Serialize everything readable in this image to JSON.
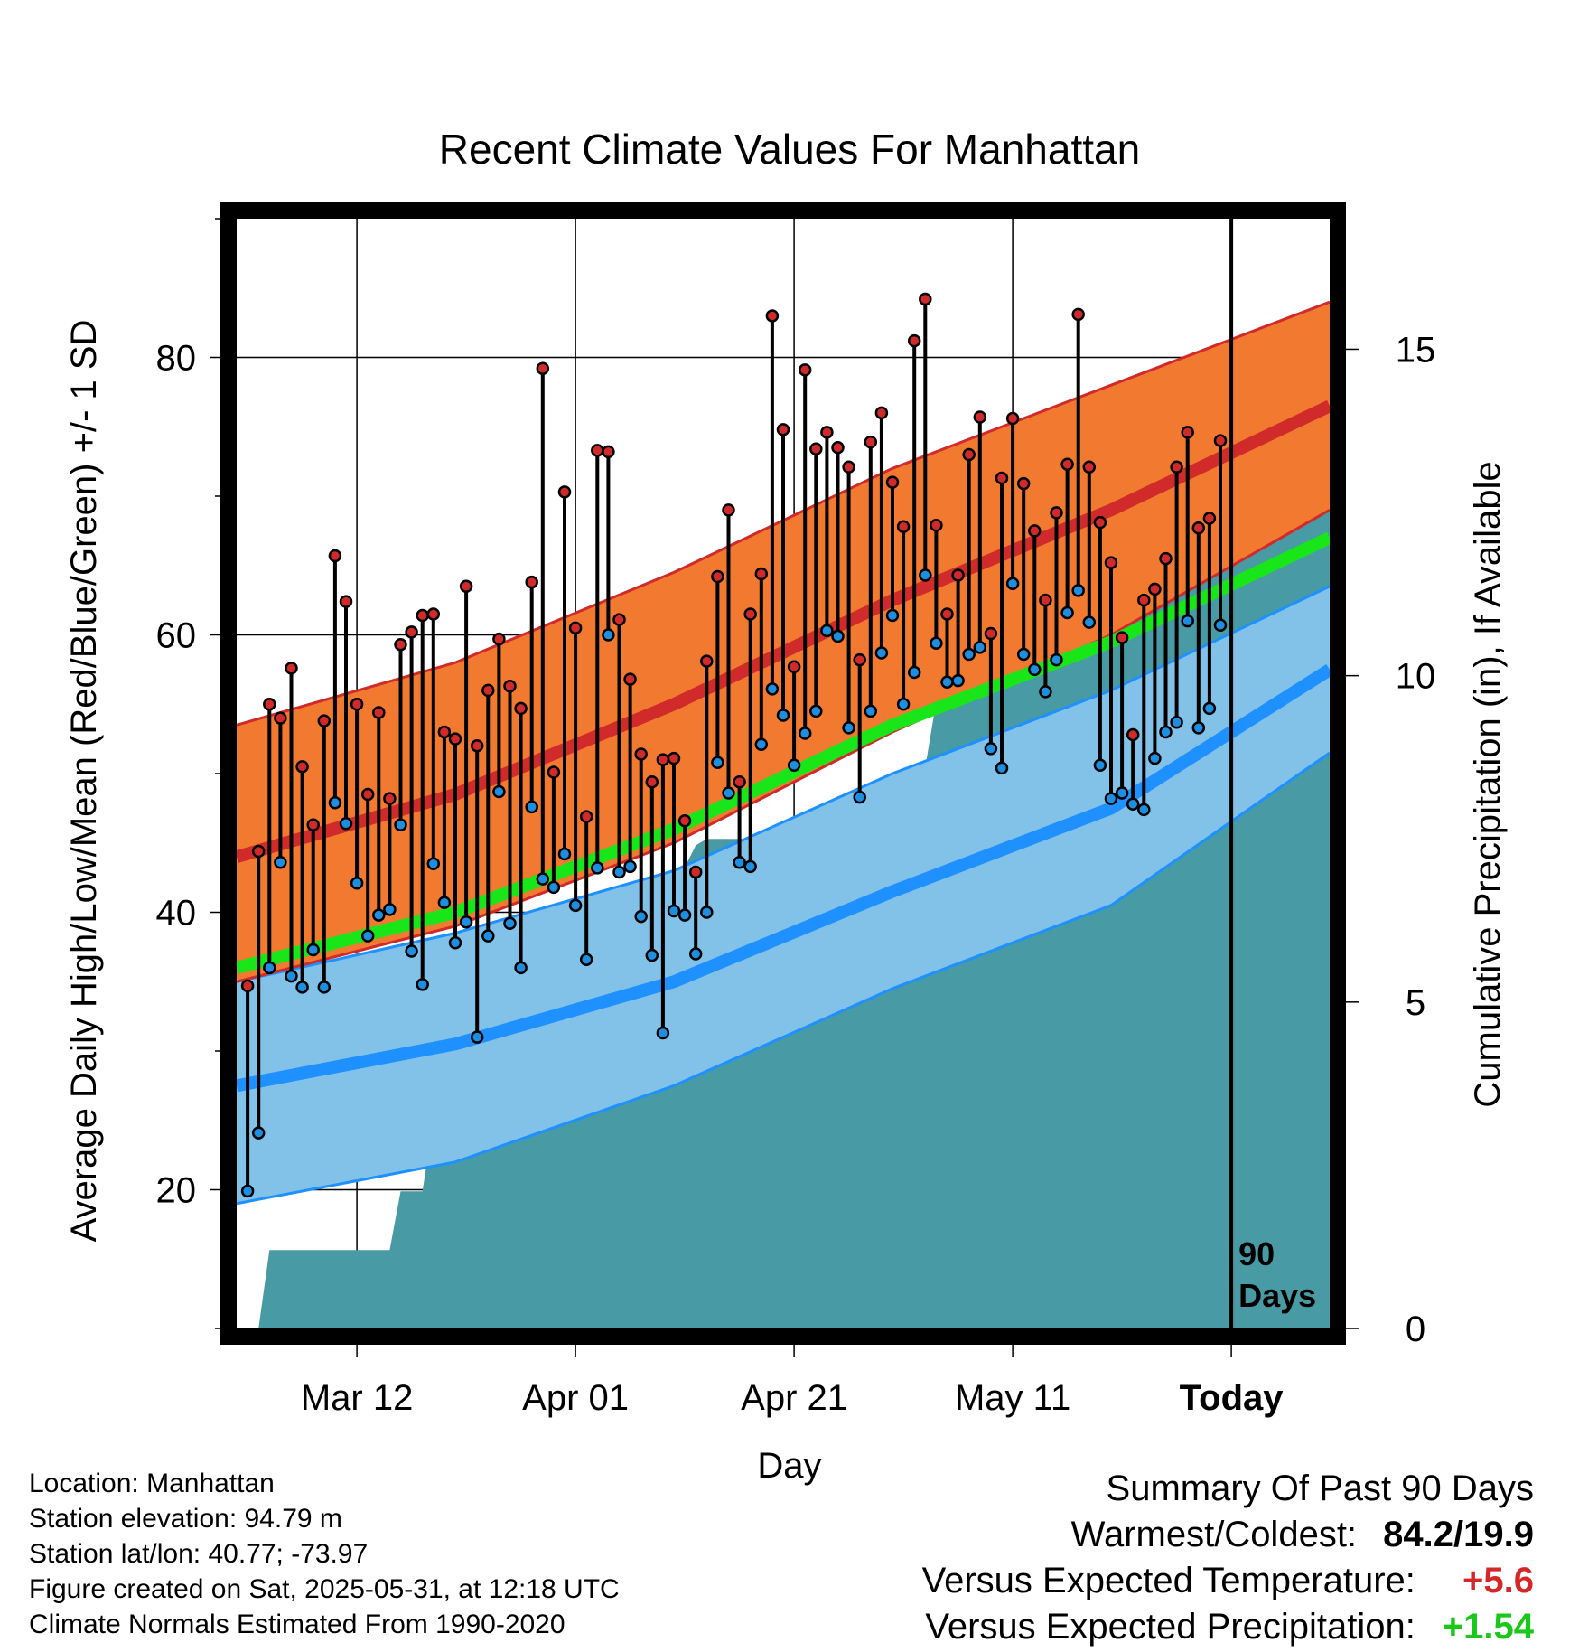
{
  "chart_data": {
    "type": "line",
    "title": "Recent Climate Values For Manhattan",
    "xlabel": "Day",
    "ylabel_left": "Average Daily High/Low/Mean (Red/Blue/Green) +/- 1 SD",
    "ylabel_right": "Cumulative Precipitation (in), If Available",
    "x_tick_labels": [
      "Mar 12",
      "Apr 01",
      "Apr 21",
      "May 11",
      "Today"
    ],
    "x_tick_days": [
      11,
      31,
      51,
      71,
      91
    ],
    "xlim": [
      0,
      100
    ],
    "ylim_left": [
      10,
      90
    ],
    "y_ticks_left": [
      20,
      40,
      60,
      80
    ],
    "ylim_right": [
      0,
      17
    ],
    "y_ticks_right": [
      0,
      5,
      10,
      15
    ],
    "grid": true,
    "today_marker": {
      "day": 91,
      "label_line1": "90",
      "label_line2": "Days"
    },
    "colors": {
      "high_band": "#f27a30",
      "high_line": "#d12a2a",
      "low_band": "#82c1e8",
      "low_line": "#1e90ff",
      "mean_line": "#19e619",
      "precip": "#489aa4",
      "high_marker": "#d12a2a",
      "low_marker": "#1e8fe0"
    },
    "normals": {
      "days": [
        0,
        20,
        40,
        60,
        80,
        100
      ],
      "high_mean": [
        44.0,
        48.5,
        55.0,
        62.5,
        69.0,
        76.5
      ],
      "high_sd_upper": [
        53.5,
        58.0,
        64.5,
        72.0,
        78.0,
        84.0
      ],
      "high_sd_lower": [
        35.0,
        39.0,
        45.0,
        53.0,
        60.0,
        69.0
      ],
      "mean": [
        36.0,
        40.0,
        46.0,
        53.5,
        59.5,
        67.0
      ],
      "low_mean": [
        27.5,
        30.5,
        35.0,
        41.5,
        47.5,
        57.5
      ],
      "low_sd_upper": [
        35.0,
        38.5,
        43.0,
        50.0,
        56.0,
        63.5
      ],
      "low_sd_lower": [
        19.0,
        22.0,
        27.5,
        34.5,
        40.5,
        51.5
      ]
    },
    "daily_high": [
      34.7,
      44.4,
      55.0,
      54.0,
      57.6,
      50.5,
      46.3,
      53.8,
      65.7,
      62.4,
      55.0,
      48.5,
      54.4,
      48.2,
      59.3,
      60.2,
      61.4,
      61.5,
      53.0,
      52.5,
      63.5,
      52.0,
      56.0,
      59.7,
      56.3,
      54.7,
      63.8,
      79.2,
      50.1,
      70.3,
      60.5,
      46.9,
      73.3,
      73.2,
      61.1,
      56.8,
      51.4,
      49.4,
      51.0,
      51.1,
      46.6,
      42.9,
      58.1,
      64.2,
      69.0,
      49.4,
      61.5,
      64.4,
      83.0,
      74.8,
      57.7,
      79.1,
      73.4,
      74.6,
      73.5,
      72.1,
      58.2,
      73.9,
      76.0,
      71.0,
      67.8,
      81.2,
      84.2,
      67.9,
      61.5,
      64.3,
      73.0,
      75.7,
      60.1,
      71.3,
      75.6,
      70.9,
      67.5,
      62.5,
      68.8,
      72.3,
      83.1,
      72.1,
      68.1,
      65.2,
      59.8,
      52.8,
      62.5,
      63.3,
      65.5,
      72.1,
      74.6,
      67.7,
      68.4,
      74.0
    ],
    "daily_low": [
      19.9,
      24.1,
      36.0,
      43.6,
      35.4,
      34.6,
      37.3,
      34.6,
      47.9,
      46.4,
      42.1,
      38.3,
      39.8,
      40.2,
      46.3,
      37.2,
      34.8,
      43.5,
      40.7,
      37.8,
      39.3,
      31.0,
      38.3,
      48.7,
      39.2,
      36.0,
      47.6,
      42.4,
      41.8,
      44.2,
      40.5,
      36.6,
      43.2,
      60.0,
      42.9,
      43.3,
      39.7,
      36.9,
      31.3,
      40.1,
      39.8,
      37.0,
      40.0,
      50.8,
      48.6,
      43.6,
      43.3,
      52.1,
      56.1,
      54.2,
      50.6,
      52.9,
      54.5,
      60.3,
      59.9,
      53.3,
      48.3,
      54.5,
      58.7,
      61.4,
      55.0,
      57.3,
      64.3,
      59.4,
      56.6,
      56.7,
      58.6,
      59.1,
      51.8,
      50.4,
      63.7,
      58.6,
      57.5,
      55.9,
      58.2,
      61.6,
      63.2,
      60.9,
      50.6,
      48.2,
      48.6,
      47.8,
      47.4,
      51.1,
      53.0,
      53.7,
      61.0,
      53.3,
      54.7,
      60.7
    ],
    "cumulative_precip": {
      "days": [
        0,
        2,
        3,
        4,
        14,
        15,
        17,
        18,
        20,
        22,
        23,
        28,
        29,
        30,
        32,
        34,
        35,
        37,
        39,
        42,
        43,
        44,
        45,
        50,
        55,
        56,
        60,
        62,
        63,
        64,
        65,
        67,
        68,
        69,
        71,
        72,
        73,
        74,
        75,
        80,
        81,
        82,
        83,
        86,
        87,
        88,
        100
      ],
      "values": [
        0.0,
        0.0,
        1.2,
        1.2,
        1.2,
        2.1,
        2.1,
        3.2,
        3.2,
        3.7,
        3.7,
        3.7,
        4.3,
        5.4,
        5.5,
        5.8,
        6.4,
        6.4,
        6.4,
        7.4,
        7.5,
        7.5,
        7.5,
        7.5,
        7.5,
        8.1,
        8.1,
        8.1,
        8.6,
        9.6,
        9.9,
        9.9,
        10.6,
        10.6,
        10.6,
        11.1,
        11.8,
        11.8,
        11.8,
        11.9,
        12.6,
        12.7,
        12.7,
        12.7,
        13.0,
        13.0,
        13.0
      ]
    }
  },
  "info": {
    "location": "Location: Manhattan",
    "elevation": "Station elevation: 94.79 m",
    "latlon": "Station lat/lon: 40.77; -73.97",
    "created": "Figure created on Sat, 2025-05-31, at 12:18 UTC",
    "normals": "Climate Normals Estimated From 1990-2020"
  },
  "summary": {
    "heading": "Summary Of Past 90 Days",
    "warm_cold_label": "Warmest/Coldest:",
    "warm_cold_value": "84.2/19.9",
    "temp_label": "Versus Expected Temperature:",
    "temp_value": "+5.6",
    "precip_label": "Versus Expected Precipitation:",
    "precip_value": "+1.54"
  }
}
